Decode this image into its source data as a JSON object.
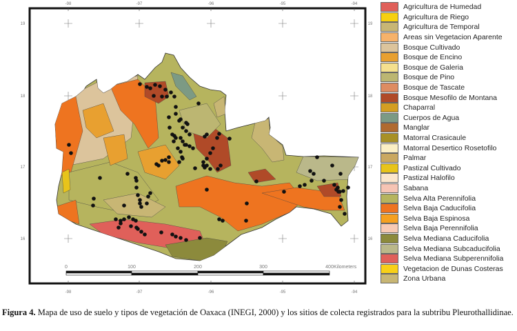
{
  "map": {
    "longitude_labels": [
      "-98",
      "-97",
      "-96",
      "-95",
      "-94"
    ],
    "latitude_labels": [
      "19",
      "18",
      "17",
      "16"
    ],
    "scale_bar": {
      "ticks": [
        "0",
        "100",
        "200",
        "300",
        "400"
      ],
      "unit": "Kilometers"
    }
  },
  "legend": [
    {
      "label": "Agricultura de Humedad",
      "color": "#e0605a"
    },
    {
      "label": "Agricultura de Riego",
      "color": "#f7d010"
    },
    {
      "label": "Agricultura de Temporal",
      "color": "#c8b674"
    },
    {
      "label": "Areas sin Vegetacion Aparente",
      "color": "#f6b26a"
    },
    {
      "label": "Bosque Cultivado",
      "color": "#dcc49c"
    },
    {
      "label": "Bosque de Encino",
      "color": "#e8a030"
    },
    {
      "label": "Bosque de Galeria",
      "color": "#f5e08e"
    },
    {
      "label": "Bosque de Pino",
      "color": "#bcb672"
    },
    {
      "label": "Bosque de Tascate",
      "color": "#de8c62"
    },
    {
      "label": "Bosque Mesofilo de Montana",
      "color": "#b04a28"
    },
    {
      "label": "Chaparral",
      "color": "#d49e22"
    },
    {
      "label": "Cuerpos de Agua",
      "color": "#7c9a84"
    },
    {
      "label": "Manglar",
      "color": "#b06a30"
    },
    {
      "label": "Matorral Crasicaule",
      "color": "#a89026"
    },
    {
      "label": "Matorral Desertico Rosetofilo",
      "color": "#fbefc4"
    },
    {
      "label": "Palmar",
      "color": "#caa860"
    },
    {
      "label": "Pastizal Cultivado",
      "color": "#e8c41a"
    },
    {
      "label": "Pastizal Halofilo",
      "color": "#fbe6cc"
    },
    {
      "label": "Sabana",
      "color": "#f6c4b4"
    },
    {
      "label": "Selva Alta Perennifolia",
      "color": "#b6b45e"
    },
    {
      "label": "Selva Baja Caducifolia",
      "color": "#ee7420"
    },
    {
      "label": "Selva Baja Espinosa",
      "color": "#f5a020"
    },
    {
      "label": "Selva Baja Perennifolia",
      "color": "#f8cab4"
    },
    {
      "label": "Selva Mediana Caducifolia",
      "color": "#8c8a3c"
    },
    {
      "label": "Selva Mediana Subcaducifolia",
      "color": "#bab88a"
    },
    {
      "label": "Selva Mediana Subperennifolia",
      "color": "#e0605a"
    },
    {
      "label": "Vegetacion de Dunas Costeras",
      "color": "#f8d018"
    },
    {
      "label": "Zona Urbana",
      "color": "#c8b674"
    }
  ],
  "caption": {
    "label": "Figura 4.",
    "text": " Mapa de uso de suelo y tipos de vegetación de Oaxaca (INEGI, 2000) y los sitios de colecta registrados para la subtribu Pleurothallidinae."
  }
}
